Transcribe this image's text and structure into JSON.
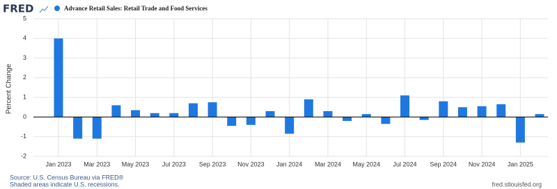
{
  "header": {
    "logo": "FRED"
  },
  "chart_data": {
    "type": "bar",
    "series": [
      {
        "name": "Advance Retail Sales: Retail Trade and Food Services",
        "color": "#1f78e0",
        "values": [
          4.0,
          -1.1,
          -1.1,
          0.6,
          0.35,
          0.2,
          0.2,
          0.7,
          0.75,
          -0.45,
          -0.4,
          0.3,
          -0.85,
          0.9,
          0.3,
          -0.2,
          0.15,
          -0.35,
          1.1,
          -0.15,
          0.8,
          0.5,
          0.55,
          0.65,
          -1.3,
          0.15
        ]
      }
    ],
    "categories": [
      "Jan 2023",
      null,
      "Mar 2023",
      null,
      "May 2023",
      null,
      "Jul 2023",
      null,
      "Sep 2023",
      null,
      "Nov 2023",
      null,
      "Jan 2024",
      null,
      "Mar 2024",
      null,
      "May 2024",
      null,
      "Jul 2024",
      null,
      "Sep 2024",
      null,
      "Nov 2024",
      null,
      "Jan 2025",
      null
    ],
    "y_label": "Percent Change",
    "ylim": [
      -2,
      5
    ],
    "yticks": [
      -2,
      -1,
      0,
      1,
      2,
      3,
      4,
      5
    ],
    "grid": true
  },
  "footer": {
    "source": "Source: U.S. Census Bureau via FRED®",
    "note": "Shaded areas indicate U.S. recessions.",
    "url": "fred.stlouisfed.org"
  }
}
